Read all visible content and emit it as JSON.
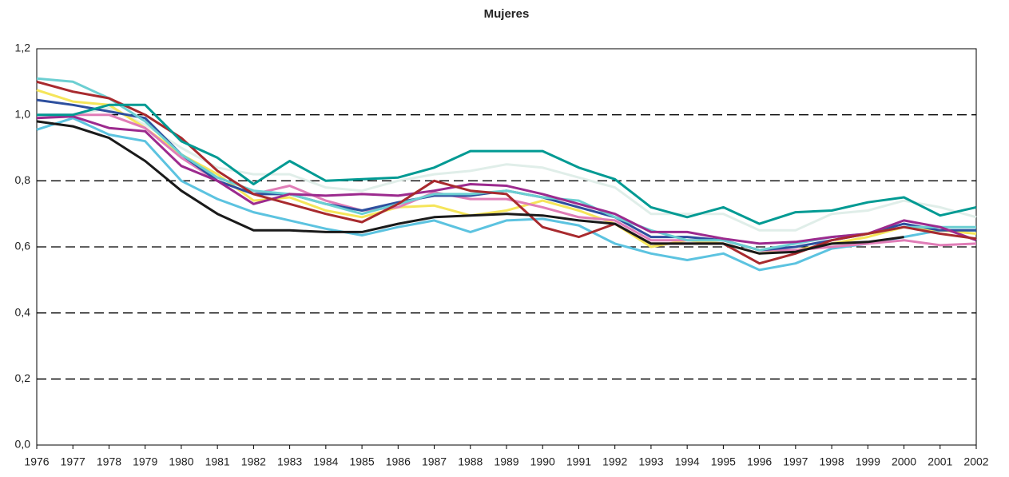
{
  "chart_data": {
    "type": "line",
    "title": "Mujeres",
    "x": [
      1976,
      1977,
      1978,
      1979,
      1980,
      1981,
      1982,
      1983,
      1984,
      1985,
      1986,
      1987,
      1988,
      1989,
      1990,
      1991,
      1992,
      1993,
      1994,
      1995,
      1996,
      1997,
      1998,
      1999,
      2000,
      2001,
      2002
    ],
    "xlim": [
      1976,
      2002
    ],
    "xticks": [
      1976,
      1977,
      1978,
      1979,
      1980,
      1981,
      1982,
      1983,
      1984,
      1985,
      1986,
      1987,
      1988,
      1989,
      1990,
      1991,
      1992,
      1993,
      1994,
      1995,
      1996,
      1997,
      1998,
      1999,
      2000,
      2001,
      2002
    ],
    "ylim": [
      0,
      1.2
    ],
    "yticks": [
      {
        "value": 0,
        "label": "0,0"
      },
      {
        "value": 0.2,
        "label": "0,2"
      },
      {
        "value": 0.4,
        "label": "0,4"
      },
      {
        "value": 0.6,
        "label": "0,6"
      },
      {
        "value": 0.8,
        "label": "0,8"
      },
      {
        "value": 1.0,
        "label": "1,0"
      },
      {
        "value": 1.2,
        "label": "1,2"
      }
    ],
    "grid": true,
    "series": [
      {
        "color": "#e0eee9",
        "values": [
          1.0,
          1.0,
          1.02,
          0.97,
          0.9,
          0.84,
          0.82,
          0.82,
          0.78,
          0.77,
          0.8,
          0.82,
          0.83,
          0.85,
          0.84,
          0.81,
          0.78,
          0.7,
          0.7,
          0.7,
          0.65,
          0.65,
          0.7,
          0.71,
          0.74,
          0.72,
          0.69
        ]
      },
      {
        "color": "#5cc3e0",
        "values": [
          0.955,
          0.99,
          0.94,
          0.92,
          0.8,
          0.745,
          0.705,
          0.68,
          0.655,
          0.635,
          0.66,
          0.68,
          0.645,
          0.68,
          0.685,
          0.665,
          0.61,
          0.58,
          0.56,
          0.58,
          0.53,
          0.55,
          0.595,
          0.61,
          0.63,
          0.65,
          0.65
        ]
      },
      {
        "color": "#f5e55a",
        "values": [
          1.075,
          1.04,
          1.03,
          0.96,
          0.88,
          0.82,
          0.74,
          0.75,
          0.71,
          0.69,
          0.72,
          0.725,
          0.695,
          0.71,
          0.74,
          0.71,
          0.67,
          0.6,
          0.62,
          0.61,
          0.58,
          0.59,
          0.61,
          0.63,
          0.66,
          0.65,
          0.64
        ]
      },
      {
        "color": "#e07db7",
        "values": [
          1.0,
          1.0,
          1.0,
          0.96,
          0.87,
          0.8,
          0.76,
          0.785,
          0.74,
          0.71,
          0.72,
          0.765,
          0.745,
          0.745,
          0.72,
          0.69,
          0.68,
          0.62,
          0.62,
          0.62,
          0.59,
          0.59,
          0.6,
          0.61,
          0.62,
          0.605,
          0.61
        ]
      },
      {
        "color": "#2d4f9e",
        "values": [
          1.045,
          1.03,
          1.01,
          0.99,
          0.88,
          0.8,
          0.76,
          0.76,
          0.73,
          0.71,
          0.735,
          0.755,
          0.755,
          0.77,
          0.75,
          0.72,
          0.69,
          0.63,
          0.63,
          0.62,
          0.59,
          0.6,
          0.62,
          0.64,
          0.67,
          0.65,
          0.65
        ]
      },
      {
        "color": "#6ccfd2",
        "values": [
          1.11,
          1.1,
          1.05,
          0.98,
          0.88,
          0.81,
          0.77,
          0.76,
          0.73,
          0.7,
          0.73,
          0.76,
          0.76,
          0.77,
          0.75,
          0.74,
          0.69,
          0.65,
          0.62,
          0.62,
          0.59,
          0.61,
          0.63,
          0.64,
          0.66,
          0.66,
          0.66
        ]
      },
      {
        "color": "#9c2a8e",
        "values": [
          0.99,
          0.995,
          0.96,
          0.95,
          0.845,
          0.8,
          0.73,
          0.76,
          0.755,
          0.76,
          0.755,
          0.77,
          0.79,
          0.785,
          0.76,
          0.73,
          0.7,
          0.645,
          0.645,
          0.625,
          0.61,
          0.615,
          0.63,
          0.64,
          0.68,
          0.66,
          0.62
        ]
      },
      {
        "color": "#a82a2e",
        "values": [
          1.1,
          1.07,
          1.05,
          1.0,
          0.93,
          0.83,
          0.76,
          0.73,
          0.7,
          0.675,
          0.73,
          0.8,
          0.77,
          0.76,
          0.66,
          0.63,
          0.67,
          0.61,
          0.61,
          0.61,
          0.55,
          0.58,
          0.62,
          0.64,
          0.66,
          0.64,
          0.625
        ]
      },
      {
        "color": "#009a93",
        "values": [
          1.0,
          1.0,
          1.03,
          1.03,
          0.92,
          0.87,
          0.79,
          0.86,
          0.8,
          0.805,
          0.81,
          0.84,
          0.89,
          0.89,
          0.89,
          0.84,
          0.805,
          0.72,
          0.69,
          0.72,
          0.67,
          0.705,
          0.71,
          0.735,
          0.75,
          0.695,
          0.72
        ]
      },
      {
        "color": "#1a1a1a",
        "values": [
          0.98,
          0.965,
          0.93,
          0.86,
          0.77,
          0.7,
          0.65,
          0.65,
          0.645,
          0.645,
          0.67,
          0.69,
          0.695,
          0.7,
          0.695,
          0.68,
          0.67,
          0.61,
          0.61,
          0.61,
          0.58,
          0.585,
          0.61,
          0.615,
          0.63,
          null,
          null
        ]
      }
    ]
  }
}
